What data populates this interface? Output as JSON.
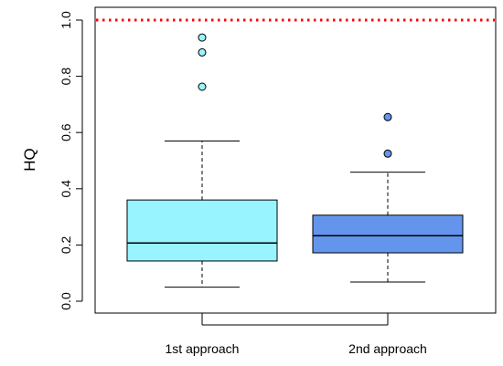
{
  "chart_data": {
    "type": "boxplot",
    "title": "",
    "xlabel": "",
    "ylabel": "HQ",
    "ylim": [
      0,
      1
    ],
    "yticks": [
      "0.0",
      "0.2",
      "0.4",
      "0.6",
      "0.8",
      "1.0"
    ],
    "categories": [
      "1st approach",
      "2nd approach"
    ],
    "reference_line": {
      "y": 1.0,
      "color": "#ff0000",
      "style": "dotted"
    },
    "grid": false,
    "series": [
      {
        "category": "1st approach",
        "fill": "#98f5ff",
        "whisker_low": 0.05,
        "q1": 0.143,
        "median": 0.207,
        "q3": 0.36,
        "whisker_high": 0.57,
        "outliers": [
          0.763,
          0.885,
          0.938
        ]
      },
      {
        "category": "2nd approach",
        "fill": "#6495ed",
        "whisker_low": 0.068,
        "q1": 0.172,
        "median": 0.233,
        "q3": 0.306,
        "whisker_high": 0.459,
        "outliers": [
          0.525,
          0.655
        ]
      }
    ]
  }
}
